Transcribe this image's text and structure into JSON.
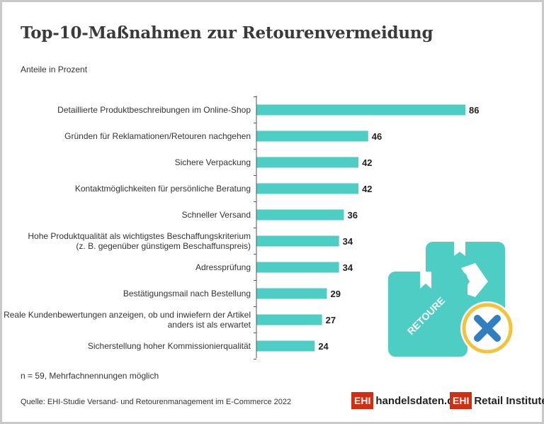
{
  "header": {
    "title": "Top-10-Maßnahmen zur Retourenvermeidung",
    "subtitle": "Anteile in Prozent"
  },
  "chart_data": {
    "type": "bar",
    "orientation": "horizontal",
    "title": "Top-10-Maßnahmen zur Retourenvermeidung",
    "subtitle": "Anteile in Prozent",
    "categories": [
      [
        "Detaillierte Produktbeschreibungen im Online-Shop"
      ],
      [
        "Gründen für Reklamationen/Retouren nachgehen"
      ],
      [
        "Sichere Verpackung"
      ],
      [
        "Kontaktmöglichkeiten für persönliche Beratung"
      ],
      [
        "Schneller Versand"
      ],
      [
        "Hohe Produktqualität als wichtigstes Beschaffungskriterium",
        "(z. B. gegenüber günstigem Beschaffunspreis)"
      ],
      [
        "Adressprüfung"
      ],
      [
        "Bestätigungsmail nach Bestellung"
      ],
      [
        "Reale Kundenbewertungen anzeigen, ob und inwiefern der Artikel",
        "anders ist als erwartet"
      ],
      [
        "Sicherstellung hoher Kommissionierqualität"
      ]
    ],
    "values": [
      86,
      46,
      42,
      42,
      36,
      34,
      34,
      29,
      27,
      24
    ],
    "xlim": [
      0,
      86
    ],
    "bar_color": "#4ecdc4",
    "grid": false,
    "legend": "none"
  },
  "footer": {
    "note": "n = 59, Mehrfachnennungen möglich",
    "source": "Quelle: EHI-Studie Versand- und Retourenmanagement im E-Commerce 2022",
    "logo1_box": "EHI",
    "logo1_text": "handelsdaten.de",
    "logo2_box": "EHI",
    "logo2_text": "Retail Institute",
    "logo2_reg": "®"
  },
  "illustration": {
    "label": "RETOURE",
    "icons": [
      "box-icon",
      "arrow-icon",
      "x-circle-icon"
    ],
    "colors": {
      "box": "#4ecdc4",
      "circle": "#f3c33c",
      "x": "#2f7fc1"
    }
  }
}
